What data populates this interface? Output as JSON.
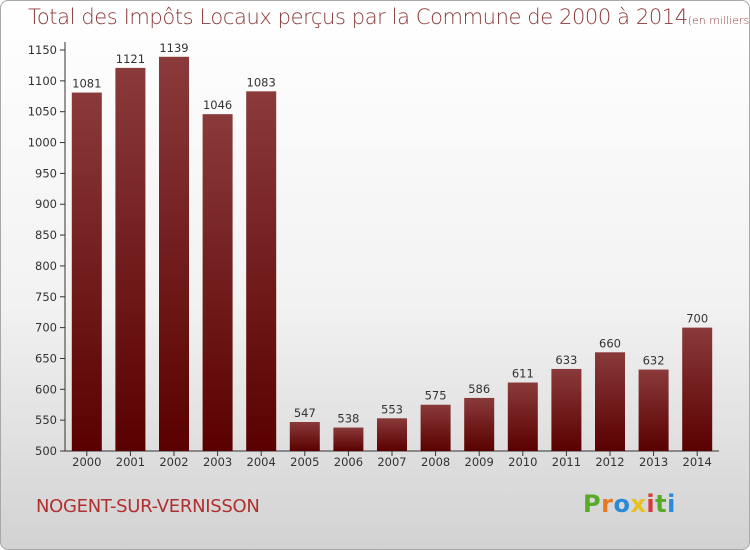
{
  "chart_data": {
    "type": "bar",
    "title": "Total des Impôts Locaux perçus par la Commune de 2000 à 2014",
    "title_unit": "(en milliers d'€)",
    "categories": [
      "2000",
      "2001",
      "2002",
      "2003",
      "2004",
      "2005",
      "2006",
      "2007",
      "2008",
      "2009",
      "2010",
      "2011",
      "2012",
      "2013",
      "2014"
    ],
    "values": [
      1081,
      1121,
      1139,
      1046,
      1083,
      547,
      538,
      553,
      575,
      586,
      611,
      633,
      660,
      632,
      700
    ],
    "ylim": [
      500,
      1150
    ],
    "yticks": [
      500,
      550,
      600,
      650,
      700,
      750,
      800,
      850,
      900,
      950,
      1000,
      1050,
      1100,
      1150
    ],
    "grid": false,
    "legend": "none",
    "colors": {
      "bar_top": "#8a3a3a",
      "bar_bottom": "#5a0000",
      "title": "#8a3a3a"
    }
  },
  "footer": {
    "commune": "NOGENT-SUR-VERNISSON",
    "logo_text": "Proxiti",
    "logo_colors": [
      "#5aaa2a",
      "#e87820",
      "#2a8ad8",
      "#e8c020",
      "#d83838",
      "#5aaa2a",
      "#2a8ad8"
    ]
  }
}
